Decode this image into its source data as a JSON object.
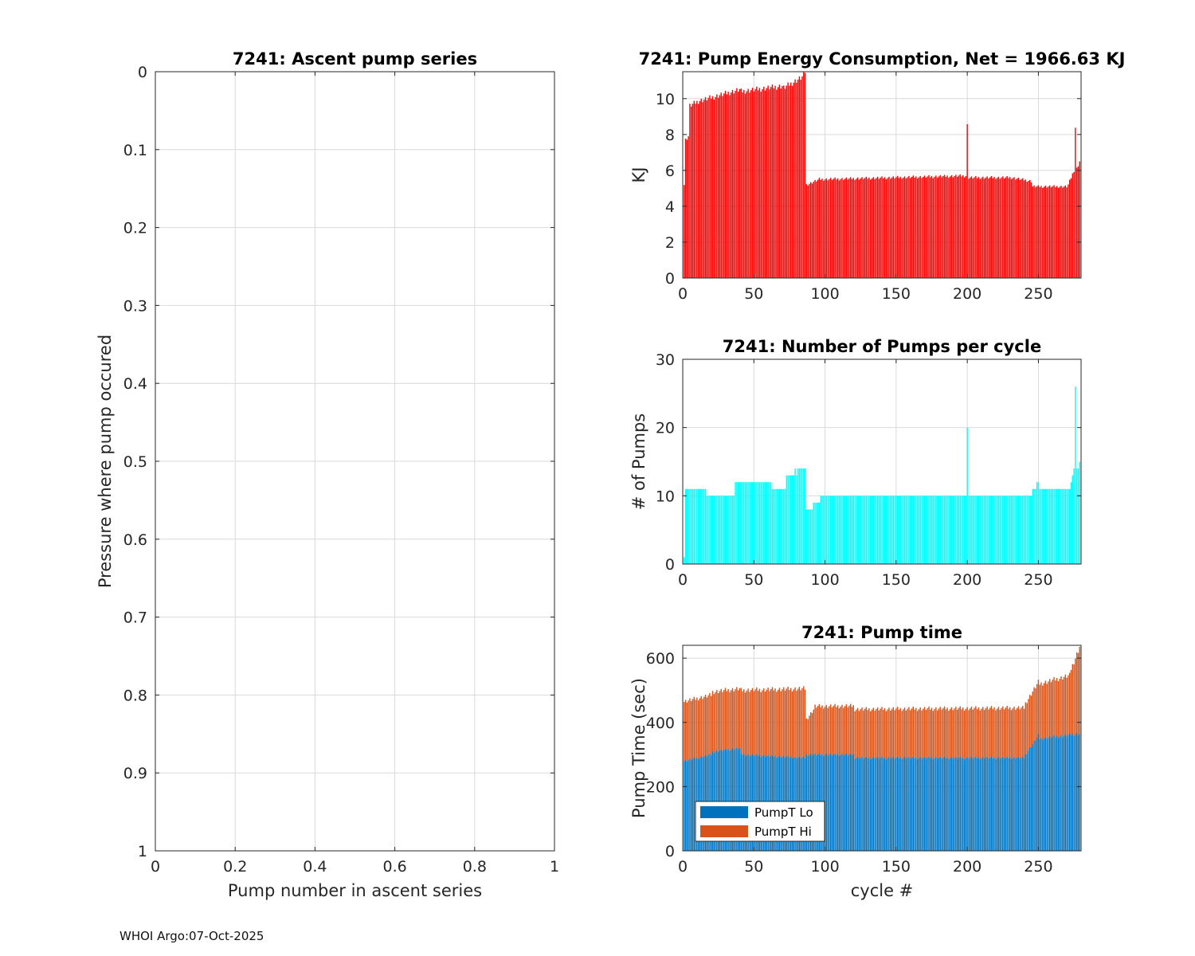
{
  "footer": "WHOI Argo:07-Oct-2025",
  "colors": {
    "energy": "#ff0000",
    "pumps": "#00ffff",
    "pump_lo": "#0072bd",
    "pump_hi": "#d95319",
    "grid": "#d9d9d9",
    "axis": "#262626"
  },
  "chart_data": [
    {
      "id": "ascent",
      "type": "scatter",
      "title": "7241: Ascent pump series",
      "xlabel": "Pump number in ascent series",
      "ylabel": "Pressure where pump occured",
      "xlim": [
        0,
        1
      ],
      "ylim": [
        0,
        1
      ],
      "y_reversed": true,
      "xticks": [
        0,
        0.2,
        0.4,
        0.6,
        0.8,
        1
      ],
      "xtick_labels": [
        "0",
        "0.2",
        "0.4",
        "0.6",
        "0.8",
        "1"
      ],
      "yticks": [
        0,
        0.1,
        0.2,
        0.3,
        0.4,
        0.5,
        0.6,
        0.7,
        0.8,
        0.9,
        1
      ],
      "ytick_labels": [
        "0",
        "0.1",
        "0.2",
        "0.3",
        "0.4",
        "0.5",
        "0.6",
        "0.7",
        "0.8",
        "0.9",
        "1"
      ],
      "grid": true,
      "points": []
    },
    {
      "id": "energy",
      "type": "bar",
      "title": "7241: Pump Energy Consumption,  Net = 1966.63 KJ",
      "xlabel": "",
      "ylabel": "KJ",
      "xlim": [
        0,
        280
      ],
      "ylim": [
        0,
        11.5
      ],
      "xticks": [
        0,
        50,
        100,
        150,
        200,
        250
      ],
      "xtick_labels": [
        "0",
        "50",
        "100",
        "150",
        "200",
        "250"
      ],
      "yticks": [
        0,
        2,
        4,
        6,
        8,
        10
      ],
      "ytick_labels": [
        "0",
        "2",
        "4",
        "6",
        "8",
        "10"
      ],
      "grid": true,
      "series": [
        {
          "name": "Energy",
          "segments": [
            {
              "from": 1,
              "to": 1,
              "start": 5.2,
              "end": 5.2
            },
            {
              "from": 2,
              "to": 4,
              "start": 7.7,
              "end": 7.9
            },
            {
              "from": 5,
              "to": 12,
              "start": 9.6,
              "end": 9.9
            },
            {
              "from": 13,
              "to": 40,
              "start": 9.9,
              "end": 10.5
            },
            {
              "from": 41,
              "to": 70,
              "start": 10.4,
              "end": 10.7
            },
            {
              "from": 71,
              "to": 84,
              "start": 10.6,
              "end": 11.2
            },
            {
              "from": 85,
              "to": 86,
              "start": 11.5,
              "end": 11.5
            },
            {
              "from": 87,
              "to": 96,
              "start": 5.2,
              "end": 5.5
            },
            {
              "from": 97,
              "to": 199,
              "start": 5.5,
              "end": 5.7
            },
            {
              "from": 200,
              "to": 200,
              "start": 8.5,
              "end": 8.5
            },
            {
              "from": 201,
              "to": 230,
              "start": 5.6,
              "end": 5.6
            },
            {
              "from": 231,
              "to": 245,
              "start": 5.6,
              "end": 5.4
            },
            {
              "from": 246,
              "to": 270,
              "start": 5.1,
              "end": 5.1
            },
            {
              "from": 271,
              "to": 275,
              "start": 5.2,
              "end": 6.0
            },
            {
              "from": 276,
              "to": 276,
              "start": 8.4,
              "end": 8.4
            },
            {
              "from": 277,
              "to": 279,
              "start": 6.1,
              "end": 6.5
            }
          ]
        }
      ]
    },
    {
      "id": "pumps",
      "type": "bar",
      "title": "7241: Number of Pumps per cycle",
      "xlabel": "",
      "ylabel": "# of Pumps",
      "xlim": [
        0,
        280
      ],
      "ylim": [
        0,
        30
      ],
      "xticks": [
        0,
        50,
        100,
        150,
        200,
        250
      ],
      "xtick_labels": [
        "0",
        "50",
        "100",
        "150",
        "200",
        "250"
      ],
      "yticks": [
        0,
        10,
        20,
        30
      ],
      "ytick_labels": [
        "0",
        "10",
        "20",
        "30"
      ],
      "grid": true,
      "series": [
        {
          "name": "Pumps",
          "segments": [
            {
              "from": 1,
              "to": 1,
              "start": 1,
              "end": 1
            },
            {
              "from": 2,
              "to": 16,
              "start": 11,
              "end": 11
            },
            {
              "from": 17,
              "to": 36,
              "start": 10,
              "end": 10
            },
            {
              "from": 37,
              "to": 62,
              "start": 12,
              "end": 12
            },
            {
              "from": 63,
              "to": 72,
              "start": 11,
              "end": 11
            },
            {
              "from": 73,
              "to": 86,
              "start": 13,
              "end": 14
            },
            {
              "from": 87,
              "to": 96,
              "start": 8,
              "end": 9
            },
            {
              "from": 97,
              "to": 199,
              "start": 10,
              "end": 10
            },
            {
              "from": 200,
              "to": 200,
              "start": 20,
              "end": 20
            },
            {
              "from": 201,
              "to": 245,
              "start": 10,
              "end": 10
            },
            {
              "from": 246,
              "to": 250,
              "start": 11,
              "end": 12
            },
            {
              "from": 251,
              "to": 272,
              "start": 11,
              "end": 11
            },
            {
              "from": 273,
              "to": 275,
              "start": 12,
              "end": 14
            },
            {
              "from": 276,
              "to": 276,
              "start": 26,
              "end": 26
            },
            {
              "from": 277,
              "to": 279,
              "start": 14,
              "end": 15
            }
          ]
        }
      ]
    },
    {
      "id": "pumptime",
      "type": "bar",
      "stacked": true,
      "title": "7241: Pump time",
      "xlabel": "cycle #",
      "ylabel": "Pump Time (sec)",
      "xlim": [
        0,
        280
      ],
      "ylim": [
        0,
        640
      ],
      "xticks": [
        0,
        50,
        100,
        150,
        200,
        250
      ],
      "xtick_labels": [
        "0",
        "50",
        "100",
        "150",
        "200",
        "250"
      ],
      "yticks": [
        0,
        200,
        400,
        600
      ],
      "ytick_labels": [
        "0",
        "200",
        "400",
        "600"
      ],
      "grid": true,
      "legend": {
        "position": "bottom-left",
        "labels": [
          "PumpT Lo",
          "PumpT Hi"
        ]
      },
      "series": [
        {
          "name": "PumpT Lo",
          "segments": [
            {
              "from": 1,
              "to": 20,
              "start": 280,
              "end": 300
            },
            {
              "from": 21,
              "to": 40,
              "start": 310,
              "end": 320
            },
            {
              "from": 41,
              "to": 86,
              "start": 300,
              "end": 290
            },
            {
              "from": 87,
              "to": 120,
              "start": 300,
              "end": 300
            },
            {
              "from": 121,
              "to": 240,
              "start": 290,
              "end": 290
            },
            {
              "from": 241,
              "to": 250,
              "start": 300,
              "end": 360
            },
            {
              "from": 251,
              "to": 279,
              "start": 350,
              "end": 365
            }
          ]
        },
        {
          "name": "PumpT Hi",
          "segments": [
            {
              "from": 1,
              "to": 40,
              "start": 185,
              "end": 185
            },
            {
              "from": 41,
              "to": 86,
              "start": 200,
              "end": 215
            },
            {
              "from": 87,
              "to": 92,
              "start": 110,
              "end": 140
            },
            {
              "from": 93,
              "to": 240,
              "start": 150,
              "end": 155
            },
            {
              "from": 241,
              "to": 250,
              "start": 160,
              "end": 165
            },
            {
              "from": 251,
              "to": 272,
              "start": 170,
              "end": 185
            },
            {
              "from": 273,
              "to": 279,
              "start": 205,
              "end": 270
            }
          ]
        }
      ]
    }
  ]
}
